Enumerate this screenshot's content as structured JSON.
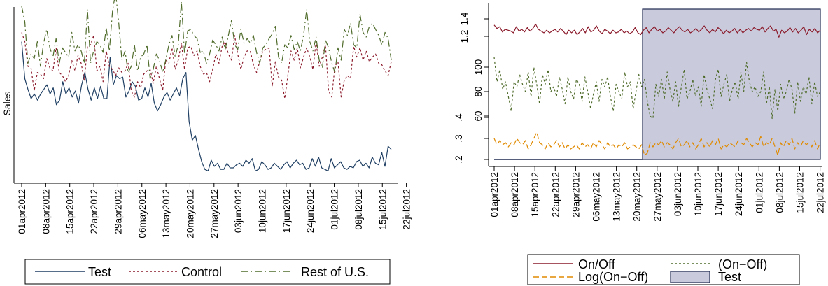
{
  "chart_data": [
    {
      "type": "line",
      "ylabel": "Sales",
      "xlabel": "",
      "x_ticks": [
        "01apr2012",
        "08apr2012",
        "15apr2012",
        "22apr2012",
        "29apr2012",
        "06may2012",
        "13may2012",
        "20may2012",
        "27may2012",
        "03jun2012",
        "10jun2012",
        "17jun2012",
        "24jun2012",
        "01jul2012",
        "08jul2012",
        "15jul2012",
        "22jul2012"
      ],
      "x_range": [
        "2012-04-01",
        "2012-07-21"
      ],
      "legend_position": "bottom",
      "grid": false,
      "series": [
        {
          "name": "Test",
          "color": "#1f3f63",
          "dash": "solid",
          "values": [
            92,
            68,
            61,
            55,
            58,
            54,
            58,
            61,
            64,
            58,
            62,
            51,
            54,
            66,
            58,
            62,
            56,
            60,
            52,
            64,
            72,
            61,
            54,
            62,
            55,
            63,
            55,
            55,
            82,
            64,
            70,
            68,
            69,
            56,
            60,
            66,
            63,
            54,
            55,
            62,
            56,
            65,
            52,
            47,
            51,
            56,
            59,
            54,
            58,
            62,
            57,
            68,
            72,
            40,
            28,
            31,
            22,
            14,
            9,
            8,
            15,
            11,
            13,
            9,
            9,
            13,
            10,
            10,
            12,
            13,
            11,
            15,
            13,
            16,
            8,
            9,
            14,
            12,
            9,
            10,
            13,
            11,
            9,
            12,
            14,
            10,
            13,
            15,
            12,
            13,
            9,
            10,
            16,
            11,
            17,
            10,
            9,
            8,
            16,
            10,
            12,
            14,
            10,
            9,
            11,
            10,
            14,
            15,
            11,
            13,
            10,
            17,
            13,
            12,
            20,
            11,
            24,
            22
          ]
        },
        {
          "name": "Control",
          "color": "#8b1a2b",
          "dash": "dotted",
          "values": [
            98,
            92,
            76,
            75,
            60,
            72,
            71,
            68,
            81,
            75,
            73,
            88,
            72,
            70,
            66,
            70,
            80,
            73,
            83,
            78,
            67,
            89,
            90,
            96,
            73,
            76,
            66,
            86,
            76,
            74,
            70,
            75,
            72,
            73,
            78,
            60,
            56,
            66,
            62,
            71,
            73,
            74,
            65,
            76,
            68,
            60,
            80,
            78,
            88,
            74,
            80,
            91,
            74,
            88,
            89,
            83,
            86,
            76,
            71,
            72,
            66,
            74,
            84,
            78,
            89,
            92,
            84,
            80,
            96,
            84,
            74,
            82,
            86,
            86,
            77,
            72,
            79,
            86,
            87,
            88,
            63,
            79,
            69,
            67,
            55,
            70,
            86,
            80,
            88,
            75,
            82,
            88,
            82,
            74,
            92,
            76,
            82,
            90,
            60,
            56,
            76,
            79,
            56,
            67,
            70,
            68,
            89,
            82,
            88,
            80,
            86,
            79,
            82,
            84,
            78,
            77,
            73,
            70,
            79
          ]
        },
        {
          "name": "Rest of U.S.",
          "color": "#4f6b2a",
          "dash": "dashdot",
          "values": [
            115,
            105,
            78,
            84,
            81,
            92,
            76,
            91,
            100,
            88,
            82,
            94,
            78,
            88,
            85,
            82,
            98,
            86,
            90,
            86,
            78,
            113,
            78,
            86,
            92,
            90,
            85,
            101,
            86,
            112,
            124,
            104,
            80,
            86,
            72,
            76,
            90,
            73,
            82,
            84,
            90,
            68,
            74,
            84,
            80,
            72,
            80,
            90,
            96,
            82,
            90,
            118,
            84,
            99,
            100,
            96,
            94,
            85,
            86,
            78,
            84,
            93,
            90,
            86,
            95,
            87,
            96,
            106,
            90,
            87,
            100,
            91,
            94,
            91,
            96,
            85,
            78,
            88,
            90,
            94,
            97,
            102,
            82,
            78,
            90,
            88,
            96,
            87,
            92,
            86,
            96,
            113,
            92,
            86,
            95,
            80,
            75,
            93,
            88,
            78,
            72,
            88,
            80,
            100,
            96,
            104,
            90,
            88,
            110,
            98,
            95,
            102,
            104,
            100,
            96,
            90,
            98,
            94,
            80
          ]
        }
      ],
      "legend": [
        "Test",
        "Control",
        "Rest of U.S."
      ]
    },
    {
      "type": "line",
      "xlabel": "",
      "ylabel": "",
      "x_ticks": [
        "01apr2012",
        "08apr2012",
        "15apr2012",
        "22apr2012",
        "29apr2012",
        "06may2012",
        "13may2012",
        "20may2012",
        "27may2012",
        "03jun2012",
        "10jun2012",
        "17jun2012",
        "24jun2012",
        "01jul2012",
        "08jul2012",
        "15jul2012",
        "22jul2012"
      ],
      "x_range": [
        "2012-04-01",
        "2012-07-22"
      ],
      "y_axes": [
        {
          "for": "On/Off",
          "ticks": [
            "1.2",
            "1.4"
          ]
        },
        {
          "for": "(On−Off)",
          "ticks": [
            "60",
            "80",
            "100"
          ]
        },
        {
          "for": "Log(On−Off)",
          "ticks": [
            ".2",
            ".3",
            ".4"
          ]
        }
      ],
      "legend_position": "bottom",
      "grid": false,
      "test_period_start": "2012-05-24",
      "series": [
        {
          "name": "On/Off",
          "color": "#8b1a2b",
          "dash": "solid",
          "values": [
            1.33,
            1.29,
            1.31,
            1.25,
            1.28,
            1.27,
            1.26,
            1.24,
            1.31,
            1.26,
            1.28,
            1.25,
            1.3,
            1.26,
            1.29,
            1.34,
            1.28,
            1.26,
            1.24,
            1.27,
            1.24,
            1.26,
            1.28,
            1.25,
            1.29,
            1.26,
            1.22,
            1.27,
            1.24,
            1.27,
            1.22,
            1.25,
            1.29,
            1.24,
            1.31,
            1.25,
            1.27,
            1.32,
            1.26,
            1.23,
            1.28,
            1.26,
            1.23,
            1.27,
            1.24,
            1.25,
            1.28,
            1.24,
            1.26,
            1.23,
            1.25,
            1.3,
            1.24,
            1.22,
            1.27,
            1.3,
            1.24,
            1.28,
            1.31,
            1.26,
            1.28,
            1.24,
            1.26,
            1.3,
            1.27,
            1.24,
            1.28,
            1.31,
            1.27,
            1.25,
            1.28,
            1.24,
            1.26,
            1.29,
            1.25,
            1.28,
            1.32,
            1.27,
            1.24,
            1.28,
            1.25,
            1.3,
            1.27,
            1.23,
            1.27,
            1.24,
            1.26,
            1.29,
            1.24,
            1.28,
            1.24,
            1.27,
            1.29,
            1.26,
            1.3,
            1.28,
            1.27,
            1.31,
            1.25,
            1.29,
            1.32,
            1.26,
            1.28,
            1.19,
            1.27,
            1.24,
            1.26,
            1.3,
            1.25,
            1.29,
            1.24,
            1.27,
            1.31,
            1.22,
            1.28,
            1.25,
            1.29,
            1.24,
            1.27
          ]
        },
        {
          "name": "(On−Off)",
          "color": "#4f6b2a",
          "dash": "dotted",
          "values": [
            108,
            88,
            98,
            82,
            88,
            76,
            64,
            88,
            84,
            94,
            86,
            80,
            96,
            76,
            100,
            86,
            70,
            94,
            86,
            98,
            80,
            84,
            76,
            92,
            82,
            70,
            92,
            80,
            74,
            90,
            86,
            72,
            92,
            80,
            66,
            78,
            88,
            72,
            90,
            84,
            92,
            76,
            64,
            86,
            80,
            74,
            96,
            84,
            88,
            66,
            80,
            94,
            84,
            90,
            72,
            60,
            58,
            86,
            76,
            90,
            74,
            96,
            82,
            72,
            88,
            68,
            84,
            98,
            74,
            80,
            90,
            76,
            84,
            68,
            94,
            82,
            74,
            66,
            90,
            98,
            76,
            86,
            94,
            72,
            82,
            88,
            74,
            96,
            80,
            104,
            88,
            80,
            84,
            76,
            80,
            96,
            70,
            84,
            58,
            82,
            64,
            86,
            74,
            80,
            90,
            82,
            62,
            88,
            72,
            84,
            78,
            92,
            70,
            88,
            76,
            80
          ]
        },
        {
          "name": "Log(On−Off)",
          "color": "#e08a00",
          "dash": "dashed",
          "values": [
            0.3,
            0.27,
            0.29,
            0.27,
            0.28,
            0.26,
            0.28,
            0.27,
            0.3,
            0.28,
            0.27,
            0.29,
            0.25,
            0.27,
            0.3,
            0.33,
            0.28,
            0.27,
            0.25,
            0.28,
            0.26,
            0.27,
            0.29,
            0.26,
            0.28,
            0.25,
            0.27,
            0.25,
            0.26,
            0.27,
            0.25,
            0.28,
            0.26,
            0.27,
            0.25,
            0.28,
            0.26,
            0.29,
            0.27,
            0.25,
            0.28,
            0.26,
            0.27,
            0.25,
            0.27,
            0.26,
            0.28,
            0.25,
            0.26,
            0.27,
            0.26,
            0.25,
            0.27,
            0.22,
            0.23,
            0.28,
            0.26,
            0.28,
            0.27,
            0.29,
            0.26,
            0.28,
            0.27,
            0.25,
            0.28,
            0.3,
            0.26,
            0.27,
            0.29,
            0.26,
            0.28,
            0.25,
            0.27,
            0.3,
            0.26,
            0.28,
            0.26,
            0.29,
            0.27,
            0.3,
            0.25,
            0.27,
            0.26,
            0.28,
            0.27,
            0.26,
            0.29,
            0.28,
            0.27,
            0.3,
            0.28,
            0.26,
            0.28,
            0.27,
            0.31,
            0.26,
            0.28,
            0.27,
            0.3,
            0.26,
            0.22,
            0.28,
            0.26,
            0.29,
            0.27,
            0.3,
            0.25,
            0.28,
            0.26,
            0.29,
            0.27,
            0.28,
            0.26,
            0.29,
            0.25,
            0.28
          ]
        },
        {
          "name": "Test",
          "color": "#c9cbdc",
          "dash": "solid",
          "values": [
            0,
            1
          ]
        }
      ],
      "legend": [
        "On/Off",
        "(On−Off)",
        "Log(On−Off)",
        "Test"
      ]
    }
  ]
}
